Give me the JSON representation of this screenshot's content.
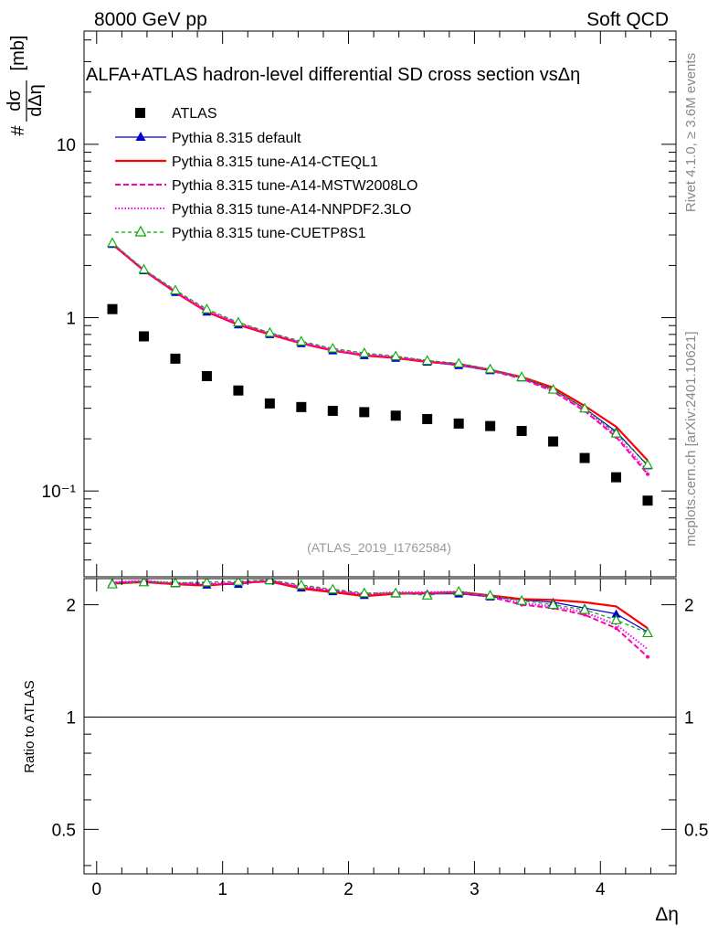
{
  "header": {
    "energy_label": "8000 GeV pp",
    "category_label": "Soft QCD",
    "rivet_label": "Rivet 4.1.0, ≥ 3.6M events",
    "site_label": "mcplots.cern.ch [arXiv:2401.10621]"
  },
  "chart_data": {
    "type": "line",
    "title": "ALFA+ATLAS hadron-level differential SD cross section vsΔη",
    "analysis_id": "(ATLAS_2019_I1762584)",
    "xlabel": "Δη",
    "ylabel": "#dσ/dΔη [mb]",
    "ratio_ylabel": "Ratio to ATLAS",
    "log_y": true,
    "xlim": [
      -0.1,
      4.6
    ],
    "ylim": [
      0.032,
      45
    ],
    "ratio_ylim": [
      0.38,
      2.35
    ],
    "x_ticks": [
      "0",
      "1",
      "2",
      "3",
      "4"
    ],
    "y_ticks": [
      "10",
      "1",
      "10⁻¹"
    ],
    "ratio_ticks": [
      "2",
      "1",
      "0.5"
    ],
    "x": [
      0.125,
      0.375,
      0.625,
      0.875,
      1.125,
      1.375,
      1.625,
      1.875,
      2.125,
      2.375,
      2.625,
      2.875,
      3.125,
      3.375,
      3.625,
      3.875,
      4.125,
      4.375
    ],
    "data": {
      "name": "ATLAS",
      "values": [
        1.12,
        0.78,
        0.58,
        0.46,
        0.38,
        0.32,
        0.305,
        0.29,
        0.285,
        0.272,
        0.26,
        0.245,
        0.237,
        0.222,
        0.193,
        0.155,
        0.12,
        0.088
      ]
    },
    "series": [
      {
        "name": "Pythia 8.315 default",
        "color": "#0000cc",
        "dash": "",
        "marker": "triangle-filled",
        "values": [
          2.65,
          1.87,
          1.4,
          1.08,
          0.91,
          0.8,
          0.71,
          0.645,
          0.605,
          0.585,
          0.555,
          0.53,
          0.495,
          0.45,
          0.385,
          0.3,
          0.22,
          0.14
        ],
        "ratio": [
          2.29,
          2.31,
          2.28,
          2.26,
          2.27,
          2.32,
          2.22,
          2.17,
          2.12,
          2.14,
          2.14,
          2.14,
          2.1,
          2.06,
          2.03,
          1.96,
          1.89,
          1.69
        ]
      },
      {
        "name": "Pythia 8.315 tune-A14-CTEQL1",
        "color": "#ff0000",
        "dash": "",
        "marker": "none",
        "values": [
          2.65,
          1.87,
          1.4,
          1.08,
          0.91,
          0.8,
          0.71,
          0.645,
          0.605,
          0.585,
          0.555,
          0.54,
          0.5,
          0.455,
          0.395,
          0.31,
          0.235,
          0.15
        ],
        "ratio": [
          2.28,
          2.3,
          2.27,
          2.25,
          2.29,
          2.31,
          2.21,
          2.16,
          2.11,
          2.14,
          2.15,
          2.16,
          2.12,
          2.07,
          2.06,
          2.03,
          1.98,
          1.73
        ]
      },
      {
        "name": "Pythia 8.315 tune-A14-MSTW2008LO",
        "color": "#ff00aa",
        "dash": "6,3",
        "marker": "dot",
        "values": [
          2.66,
          1.88,
          1.41,
          1.09,
          0.92,
          0.81,
          0.715,
          0.65,
          0.61,
          0.59,
          0.56,
          0.535,
          0.495,
          0.445,
          0.375,
          0.29,
          0.205,
          0.125
        ],
        "ratio": [
          2.29,
          2.31,
          2.28,
          2.27,
          2.28,
          2.32,
          2.23,
          2.18,
          2.13,
          2.15,
          2.15,
          2.15,
          2.1,
          2.0,
          1.96,
          1.88,
          1.73,
          1.45
        ]
      },
      {
        "name": "Pythia 8.315 tune-A14-NNPDF2.3LO",
        "color": "#ff00ff",
        "dash": "1.5,2",
        "marker": "none",
        "values": [
          2.68,
          1.89,
          1.42,
          1.1,
          0.93,
          0.815,
          0.72,
          0.655,
          0.615,
          0.595,
          0.565,
          0.54,
          0.5,
          0.45,
          0.38,
          0.295,
          0.21,
          0.13
        ],
        "ratio": [
          2.3,
          2.32,
          2.29,
          2.28,
          2.29,
          2.33,
          2.24,
          2.19,
          2.14,
          2.16,
          2.16,
          2.17,
          2.12,
          2.02,
          1.98,
          1.91,
          1.77,
          1.52
        ]
      },
      {
        "name": "Pythia 8.315 tune-CUETP8S1",
        "color": "#00aa00",
        "dash": "4,3",
        "marker": "triangle-open",
        "values": [
          2.7,
          1.9,
          1.44,
          1.12,
          0.94,
          0.82,
          0.73,
          0.665,
          0.625,
          0.6,
          0.565,
          0.545,
          0.505,
          0.455,
          0.385,
          0.3,
          0.215,
          0.142
        ],
        "ratio": [
          2.27,
          2.3,
          2.29,
          2.3,
          2.31,
          2.33,
          2.26,
          2.2,
          2.15,
          2.15,
          2.12,
          2.17,
          2.12,
          2.05,
          2.0,
          1.94,
          1.82,
          1.68
        ]
      }
    ]
  }
}
